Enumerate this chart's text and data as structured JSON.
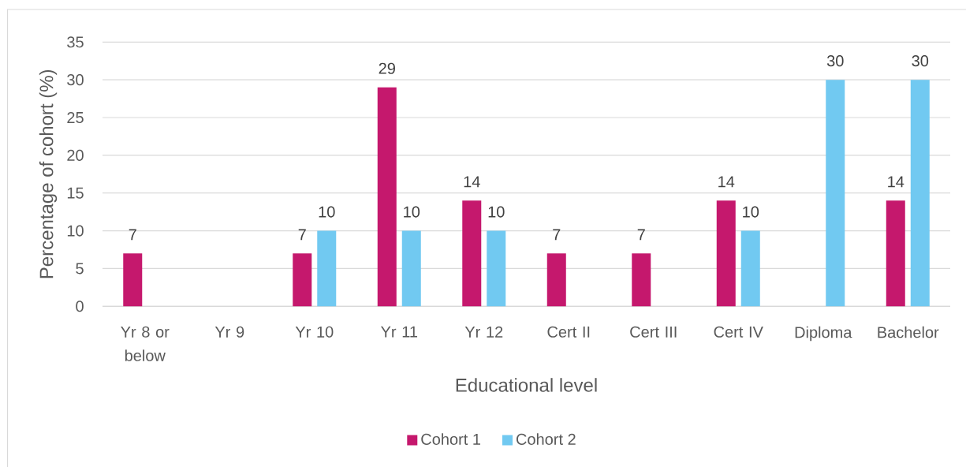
{
  "chart_data": {
    "type": "bar",
    "categories": [
      "Yr 8 or below",
      "Yr 9",
      "Yr 10",
      "Yr 11",
      "Yr 12",
      "Cert II",
      "Cert III",
      "Cert IV",
      "Diploma",
      "Bachelor"
    ],
    "series": [
      {
        "name": "Cohort 1",
        "color": "#c5186d",
        "values": [
          7,
          null,
          7,
          29,
          14,
          7,
          7,
          14,
          null,
          14
        ]
      },
      {
        "name": "Cohort 2",
        "color": "#71c9f1",
        "values": [
          null,
          null,
          10,
          10,
          10,
          null,
          null,
          10,
          30,
          30
        ]
      }
    ],
    "xlabel": "Educational level",
    "ylabel": "Percentage of cohort (%)",
    "ylim": [
      0,
      35
    ],
    "yticks": [
      0,
      5,
      10,
      15,
      20,
      25,
      30,
      35
    ],
    "grid": "y",
    "legend": "bottom",
    "data_labels": true
  }
}
